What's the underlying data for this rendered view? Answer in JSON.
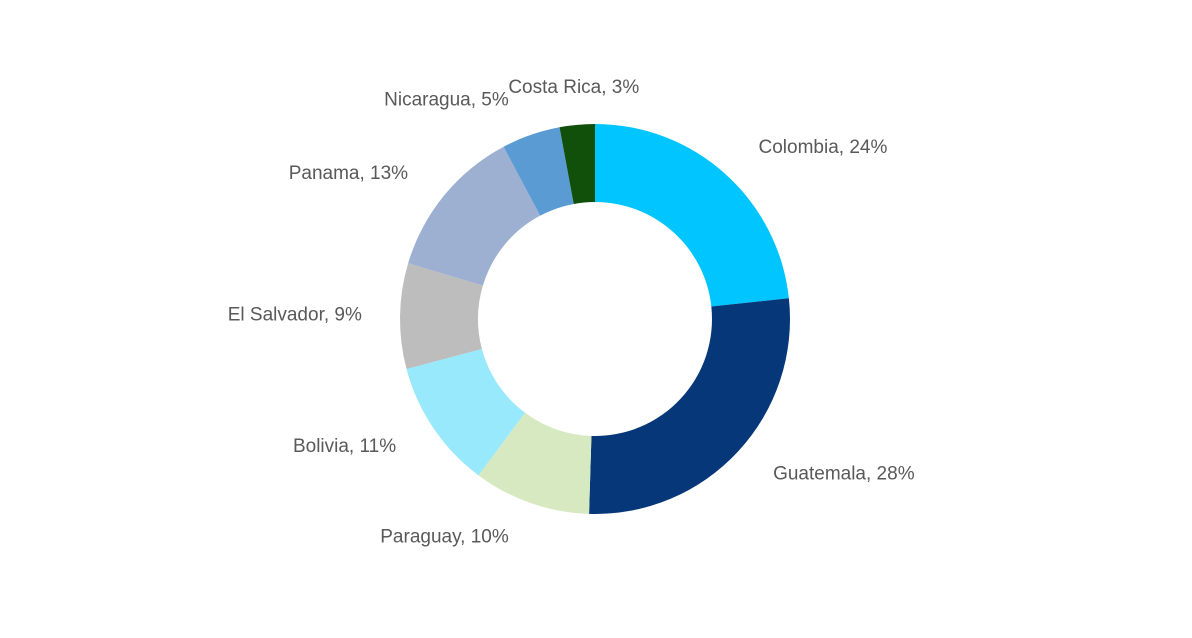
{
  "chart_data": {
    "type": "donut",
    "values": [
      24,
      28,
      10,
      11,
      9,
      13,
      5,
      3
    ],
    "value_labels": [
      "Colombia, 24%",
      "Guatemala, 28%",
      "Paraguay, 10%",
      "Bolivia, 11%",
      "El Salvador, 9%",
      "Panama, 13%",
      "Nicaragua, 5%",
      "Costa Rica, 3%"
    ],
    "colors": [
      "#00c5ff",
      "#063778",
      "#d7e9c0",
      "#99e9fc",
      "#bdbdbd",
      "#9db0d1",
      "#5a9bd4",
      "#11500a"
    ]
  }
}
